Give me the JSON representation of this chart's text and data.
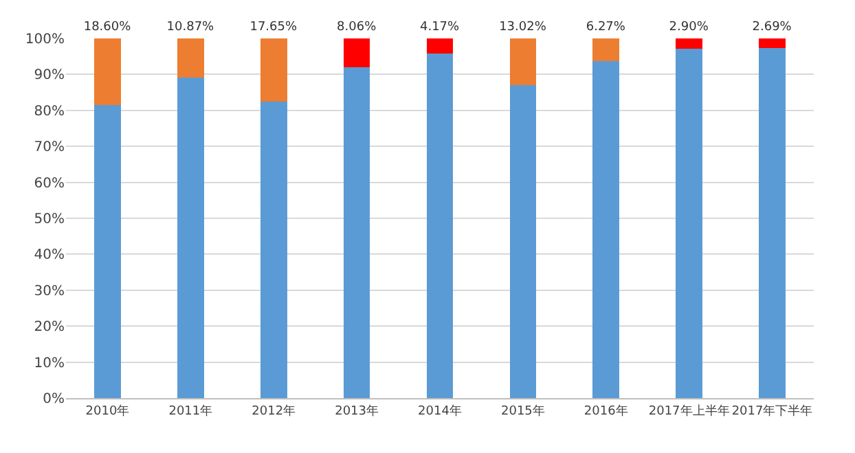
{
  "chart_data": {
    "type": "bar",
    "stacked": true,
    "categories": [
      "2010年",
      "2011年",
      "2012年",
      "2013年",
      "2014年",
      "2015年",
      "2016年",
      "2017年上半年",
      "2017年下半年"
    ],
    "series": [
      {
        "color": "#5b9bd5",
        "values": [
          81.4,
          89.13,
          82.35,
          91.94,
          95.83,
          86.98,
          93.73,
          97.1,
          97.31
        ]
      },
      {
        "color": "#ed7d31",
        "values": [
          18.6,
          10.87,
          17.65,
          0,
          0,
          13.02,
          6.27,
          0,
          0
        ],
        "value_labels": [
          "18.60%",
          "10.87%",
          "17.65%",
          null,
          null,
          "13.02%",
          "6.27%",
          null,
          null
        ]
      },
      {
        "color": "#ff0000",
        "values": [
          0,
          0,
          0,
          8.06,
          4.17,
          0,
          0,
          2.9,
          2.69
        ],
        "value_labels": [
          null,
          null,
          null,
          "8.06%",
          "4.17%",
          null,
          null,
          "2.90%",
          "2.69%"
        ]
      }
    ],
    "ylim": [
      0,
      100
    ],
    "yticks": [
      {
        "value": 0,
        "label": "0%"
      },
      {
        "value": 10,
        "label": "10%"
      },
      {
        "value": 20,
        "label": "20%"
      },
      {
        "value": 30,
        "label": "30%"
      },
      {
        "value": 40,
        "label": "40%"
      },
      {
        "value": 50,
        "label": "50%"
      },
      {
        "value": 60,
        "label": "60%"
      },
      {
        "value": 70,
        "label": "70%"
      },
      {
        "value": 80,
        "label": "80%"
      },
      {
        "value": 90,
        "label": "90%"
      },
      {
        "value": 100,
        "label": "100%"
      }
    ],
    "grid": "y"
  }
}
